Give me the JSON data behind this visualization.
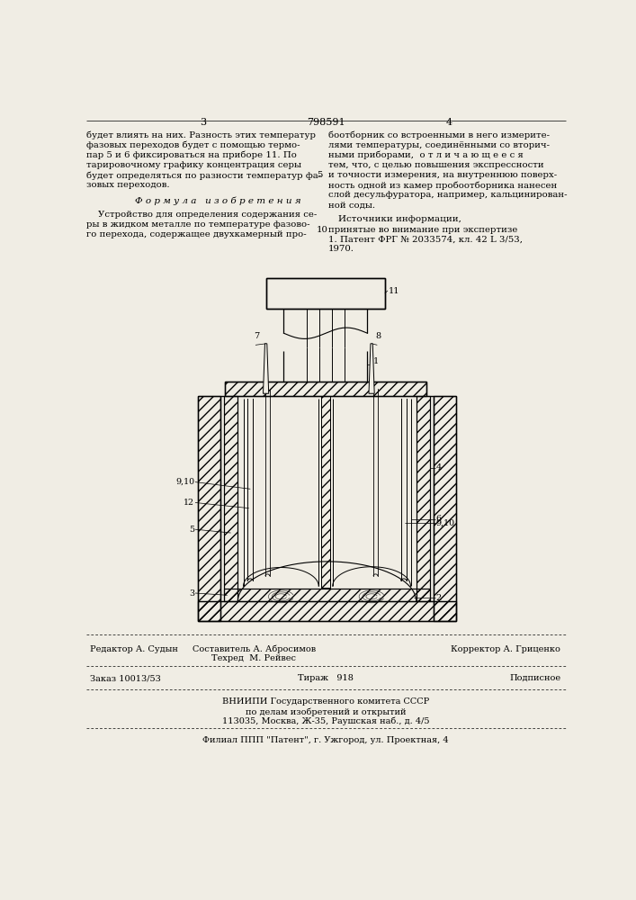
{
  "bg_color": "#f0ede4",
  "title_page_num_left": "3",
  "title_patent": "798591",
  "title_page_num_right": "4",
  "col_left_text": [
    "будет влиять на них. Разность этих температур",
    "фазовых переходов будет с помощью термо-",
    "пар 5 и 6 фиксироваться на приборе 11. По",
    "тарировочному графику концентрация серы",
    "будет определяться по разности температур фа-",
    "зовых переходов."
  ],
  "formula_header": "Ф о р м у л а   и з о б р е т е н и я",
  "formula_text": [
    "    Устройство для определения содержания се-",
    "ры в жидком металле по температуре фазово-",
    "го перехода, содержащее двухкамерный про-"
  ],
  "col_right_text": [
    "боотборник со встроенными в него измерите-",
    "лями температуры, соединёнными со вторич-",
    "ными приборами,  о т л и ч а ю щ е е с я",
    "тем, что, с целью повышения экспрессности",
    "и точности измерения, на внутреннюю поверх-",
    "ность одной из камер пробоотборника нанесен",
    "слой десульфуратора, например, кальцинирован-",
    "ной соды."
  ],
  "right_number_5": "5",
  "sources_header": "Источники информации,",
  "sources_subheader": "принятые во внимание при экспертизе",
  "source_1": "1. Патент ФРГ № 2033574, кл. 42 L 3/53,",
  "source_2": "1970.",
  "right_number_10": "10",
  "bottom_line1_left": "Редактор А. Судын",
  "bottom_line1_center": "Составитель А. Абросимов",
  "bottom_line1_center2": "Техред  М. Рейвес",
  "bottom_line1_right": "Корректор А. Гриценко",
  "bottom_line2_left": "Заказ 10013/53",
  "bottom_line2_center": "Тираж   918",
  "bottom_line2_right": "Подписное",
  "bottom_line3": "ВНИИПИ Государственного комитета СССР",
  "bottom_line4": "по делам изобретений и открытий",
  "bottom_line5": "113035, Москва, Ж-35, Раушская наб., д. 4/5",
  "bottom_line6": "Филиал ППП \"Патент\", г. Ужгород, ул. Проектная, 4"
}
